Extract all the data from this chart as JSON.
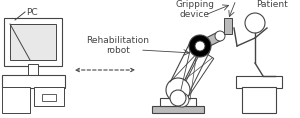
{
  "bg_color": "#ffffff",
  "lc": "#444444",
  "gray": "#bbbbbb",
  "darkgray": "#888888",
  "figsize": [
    3.0,
    1.18
  ],
  "dpi": 100,
  "label_PC": "PC",
  "label_robot": "Rehabilitation\nrobot",
  "label_gripper": "Gripping\ndevice",
  "label_patient": "Patient"
}
